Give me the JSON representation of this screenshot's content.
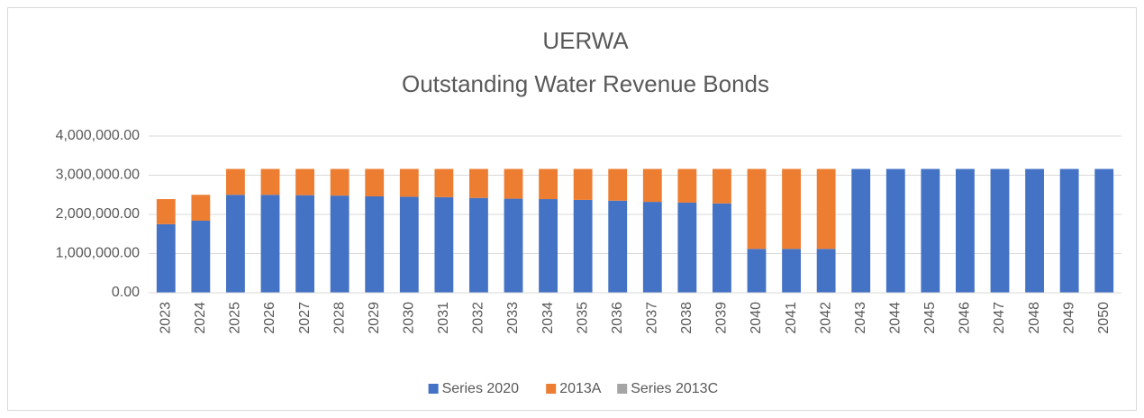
{
  "chart_data": {
    "type": "stacked_bar",
    "title": "UERWA",
    "subtitle": "Outstanding Water Revenue Bonds",
    "categories": [
      "2023",
      "2024",
      "2025",
      "2026",
      "2027",
      "2028",
      "2029",
      "2030",
      "2031",
      "2032",
      "2033",
      "2034",
      "2035",
      "2036",
      "2037",
      "2038",
      "2039",
      "2040",
      "2041",
      "2042",
      "2043",
      "2044",
      "2045",
      "2046",
      "2047",
      "2048",
      "2049",
      "2050"
    ],
    "series": [
      {
        "name": "Series 2020",
        "color": "#4472c4",
        "values": [
          1750000,
          1840000,
          2500000,
          2500000,
          2490000,
          2480000,
          2460000,
          2450000,
          2440000,
          2420000,
          2400000,
          2390000,
          2370000,
          2350000,
          2320000,
          2300000,
          2280000,
          1120000,
          1120000,
          1120000,
          3160000,
          3160000,
          3160000,
          3160000,
          3160000,
          3160000,
          3160000,
          3160000
        ]
      },
      {
        "name": "2013A",
        "color": "#ed7d31",
        "values": [
          640000,
          660000,
          660000,
          660000,
          670000,
          680000,
          700000,
          710000,
          720000,
          740000,
          760000,
          770000,
          790000,
          810000,
          840000,
          860000,
          880000,
          2040000,
          2040000,
          2040000,
          0,
          0,
          0,
          0,
          0,
          0,
          0,
          0
        ]
      },
      {
        "name": "Series 2013C",
        "color": "#a5a5a5",
        "values": [
          0,
          0,
          0,
          0,
          0,
          0,
          0,
          0,
          0,
          0,
          0,
          0,
          0,
          0,
          0,
          0,
          0,
          0,
          0,
          0,
          0,
          0,
          0,
          0,
          0,
          0,
          0,
          0
        ]
      }
    ],
    "ylim": [
      0,
      4000000
    ],
    "yticks": [
      {
        "value": 0,
        "label": "0.00"
      },
      {
        "value": 1000000,
        "label": "1,000,000.00"
      },
      {
        "value": 2000000,
        "label": "2,000,000.00"
      },
      {
        "value": 3000000,
        "label": "3,000,000.00"
      },
      {
        "value": 4000000,
        "label": "4,000,000.00"
      }
    ],
    "grid": true,
    "legend": "bottom"
  }
}
